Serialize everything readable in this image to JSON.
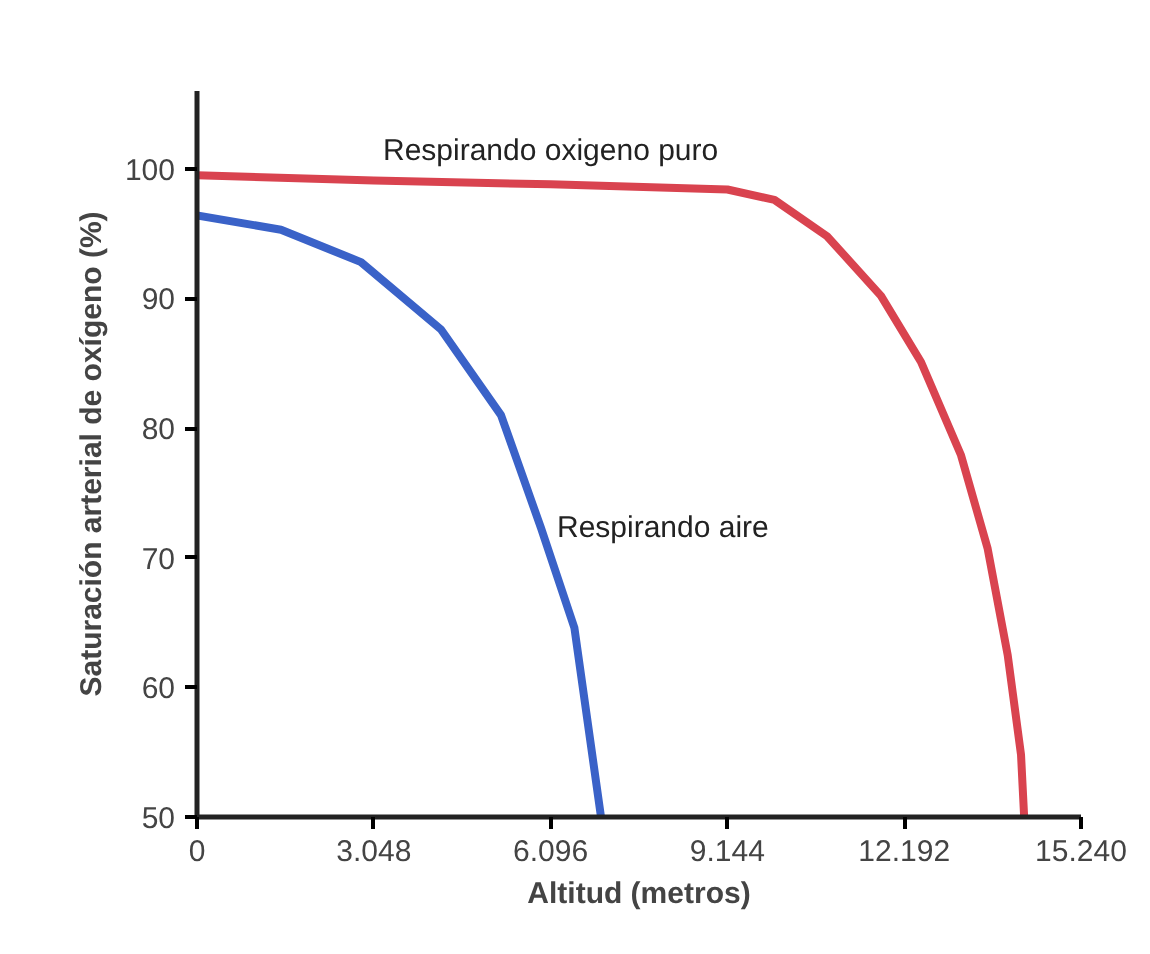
{
  "chart_data": {
    "type": "line",
    "xlabel": "Altitud (metros)",
    "ylabel": "Saturación arterial de oxígeno (%)",
    "xlim": [
      0,
      15240
    ],
    "ylim": [
      50,
      106
    ],
    "xticks": [
      0,
      {
        "value": 3048,
        "label": "3.048"
      },
      {
        "value": 6096,
        "label": "6.096"
      },
      {
        "value": 9144,
        "label": "9.144"
      },
      {
        "value": 12192,
        "label": "12.192"
      },
      {
        "value": 15240,
        "label": "15.240"
      }
    ],
    "yticks": [
      50,
      60,
      70,
      80,
      90,
      100
    ],
    "grid": false,
    "marker": "none",
    "line_style": "solid",
    "series": [
      {
        "name": "Respirando oxigeno puro",
        "color": "#d9434f",
        "x": [
          0,
          3048,
          6096,
          9144,
          9955,
          10862,
          11792,
          12482,
          13172,
          13631,
          13976,
          14206,
          14260
        ],
        "values": [
          99.5,
          99.1,
          98.8,
          98.4,
          97.6,
          94.8,
          90.2,
          85.1,
          77.9,
          70.7,
          62.5,
          54.8,
          50
        ]
      },
      {
        "name": "Respirando aire",
        "color": "#3a62c8",
        "x": [
          0,
          1448,
          2827,
          4207,
          5241,
          5930,
          6506,
          6965
        ],
        "values": [
          96.4,
          95.3,
          92.8,
          87.6,
          81.0,
          72.3,
          64.6,
          50
        ]
      }
    ]
  }
}
